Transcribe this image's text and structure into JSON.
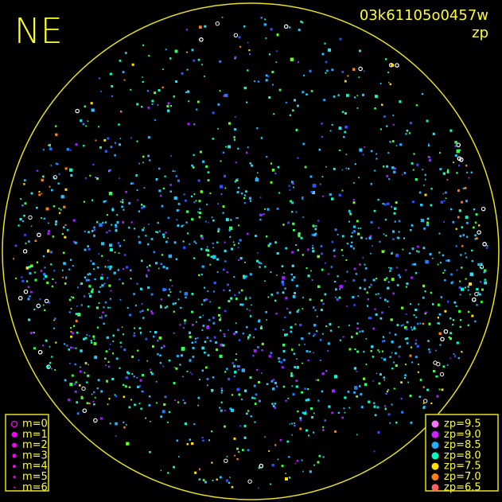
{
  "header": {
    "corner": "NE",
    "frame": "03k61105o0457w",
    "mode": "zp"
  },
  "magnitude_legend": {
    "color": "#ff00ff",
    "items": [
      "m=0",
      "m=1",
      "m=2",
      "m=3",
      "m=4",
      "m=5",
      "m=6"
    ]
  },
  "zp_legend": {
    "items": [
      {
        "label": "zp=9.5",
        "color": "#ff70ff"
      },
      {
        "label": "zp=9.0",
        "color": "#d020ff"
      },
      {
        "label": "zp=8.5",
        "color": "#20b0ff"
      },
      {
        "label": "zp=8.0",
        "color": "#00ffc0"
      },
      {
        "label": "zp=7.5",
        "color": "#ffe000"
      },
      {
        "label": "zp=7.0",
        "color": "#ff8010"
      },
      {
        "label": "zp=6.5",
        "color": "#ff6060"
      }
    ]
  }
}
